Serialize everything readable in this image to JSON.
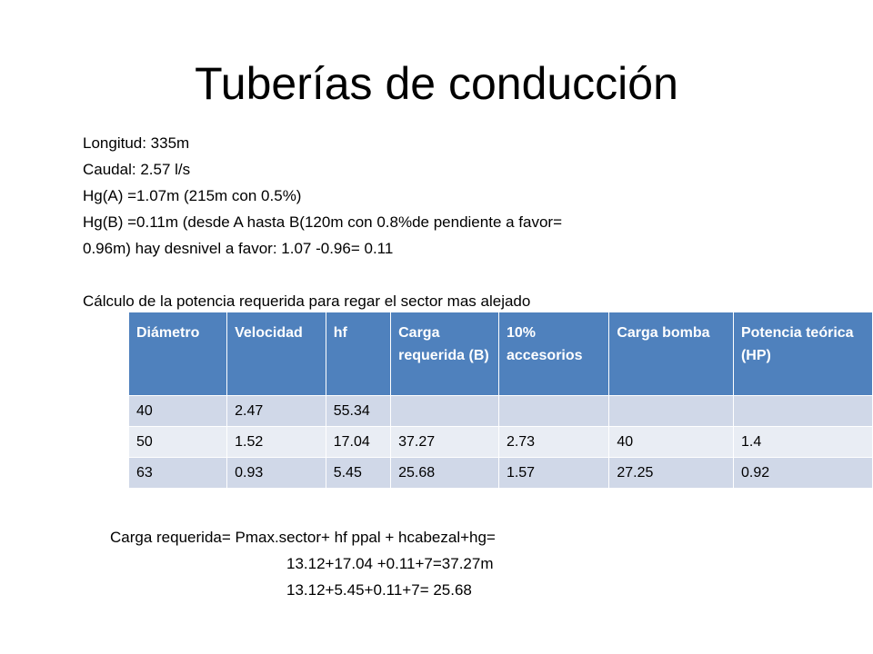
{
  "title": "Tuberías de conducción",
  "info_lines": [
    "Longitud: 335m",
    "Caudal: 2.57 l/s",
    "Hg(A) =1.07m (215m con 0.5%)",
    "Hg(B) =0.11m (desde  A hasta B(120m con 0.8%de pendiente a favor=",
    "0.96m) hay desnivel a favor: 1.07 -0.96= 0.11",
    "",
    "Cálculo de la potencia requerida para regar el sector mas alejado"
  ],
  "table": {
    "headers": [
      "Diámetro",
      "Velocidad",
      "hf",
      "Carga requerida (B)",
      "10% accesorios",
      "Carga bomba",
      "Potencia teórica (HP)"
    ],
    "rows": [
      [
        "40",
        "2.47",
        "55.34",
        "",
        "",
        "",
        ""
      ],
      [
        "50",
        "1.52",
        "17.04",
        "37.27",
        "2.73",
        "40",
        "1.4"
      ],
      [
        "63",
        "0.93",
        "5.45",
        "25.68",
        "1.57",
        "27.25",
        "0.92"
      ]
    ]
  },
  "formula": {
    "line1": "Carga requerida= Pmax.sector+ hf ppal + hcabezal+hg=",
    "line2": "13.12+17.04 +0.11+7=37.27m",
    "line3": "13.12+5.45+0.11+7= 25.68"
  },
  "colors": {
    "header_bg": "#4f81bd",
    "row_odd_bg": "#d0d8e8",
    "row_even_bg": "#e9edf4"
  }
}
